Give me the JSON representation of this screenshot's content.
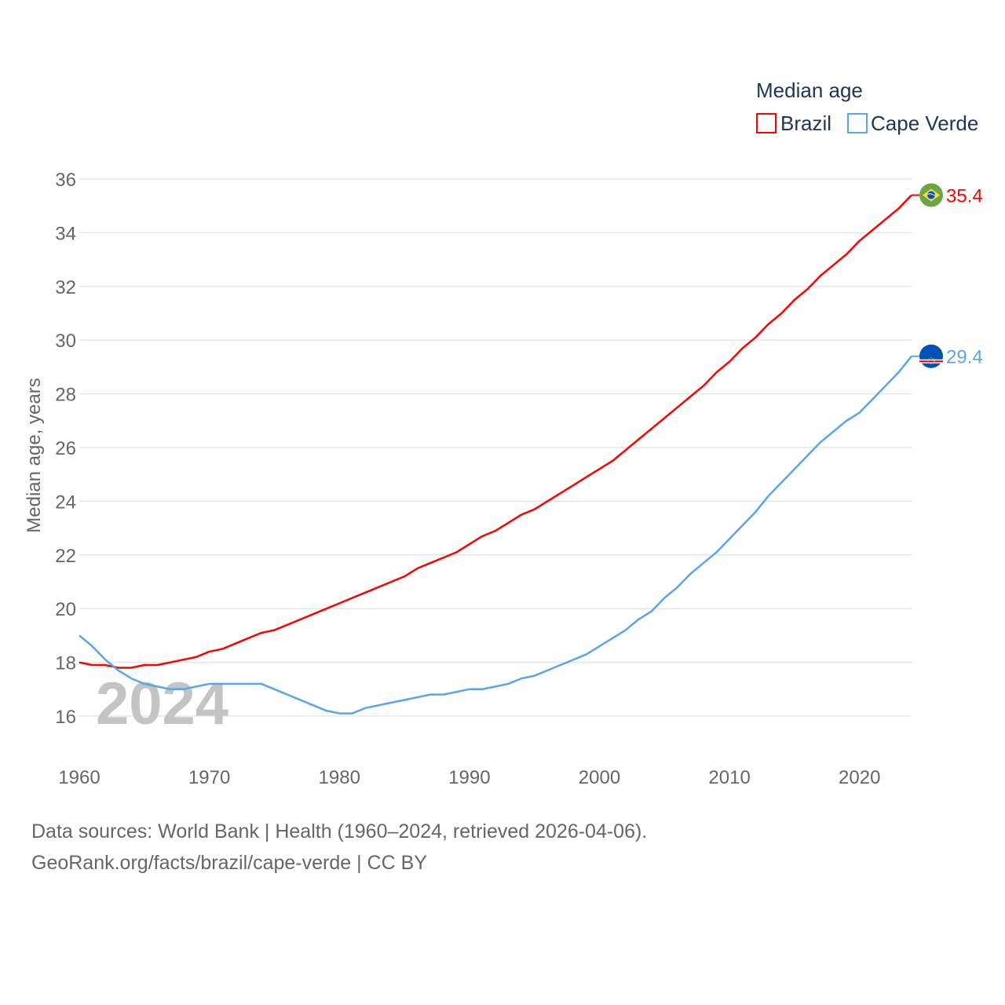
{
  "chart_data": {
    "type": "line",
    "title": "Median age",
    "xlabel": "",
    "ylabel": "Median age, years",
    "xlim": [
      1960,
      2024
    ],
    "ylim": [
      15,
      36.5
    ],
    "xticks": [
      1960,
      1970,
      1980,
      1990,
      2000,
      2010,
      2020
    ],
    "yticks": [
      16,
      18,
      20,
      22,
      24,
      26,
      28,
      30,
      32,
      34,
      36
    ],
    "grid": true,
    "legend_position": "top-right",
    "watermark_year": "2024",
    "x": [
      1960,
      1961,
      1962,
      1963,
      1964,
      1965,
      1966,
      1967,
      1968,
      1969,
      1970,
      1971,
      1972,
      1973,
      1974,
      1975,
      1976,
      1977,
      1978,
      1979,
      1980,
      1981,
      1982,
      1983,
      1984,
      1985,
      1986,
      1987,
      1988,
      1989,
      1990,
      1991,
      1992,
      1993,
      1994,
      1995,
      1996,
      1997,
      1998,
      1999,
      2000,
      2001,
      2002,
      2003,
      2004,
      2005,
      2006,
      2007,
      2008,
      2009,
      2010,
      2011,
      2012,
      2013,
      2014,
      2015,
      2016,
      2017,
      2018,
      2019,
      2020,
      2021,
      2022,
      2023,
      2024
    ],
    "series": [
      {
        "name": "Brazil",
        "color": "#ff0000",
        "end_label": "35.4",
        "flag": "brazil-flag",
        "values": [
          18.0,
          17.9,
          17.9,
          17.8,
          17.8,
          17.9,
          17.9,
          18.0,
          18.1,
          18.2,
          18.4,
          18.5,
          18.7,
          18.9,
          19.1,
          19.2,
          19.4,
          19.6,
          19.8,
          20.0,
          20.2,
          20.4,
          20.6,
          20.8,
          21.0,
          21.2,
          21.5,
          21.7,
          21.9,
          22.1,
          22.4,
          22.7,
          22.9,
          23.2,
          23.5,
          23.7,
          24.0,
          24.3,
          24.6,
          24.9,
          25.2,
          25.5,
          25.9,
          26.3,
          26.7,
          27.1,
          27.5,
          27.9,
          28.3,
          28.8,
          29.2,
          29.7,
          30.1,
          30.6,
          31.0,
          31.5,
          31.9,
          32.4,
          32.8,
          33.2,
          33.7,
          34.1,
          34.5,
          34.9,
          35.4
        ]
      },
      {
        "name": "Cape Verde",
        "color": "#5ba4ec",
        "end_label": "29.4",
        "flag": "cape-verde-flag",
        "values": [
          19.0,
          18.6,
          18.1,
          17.7,
          17.4,
          17.2,
          17.1,
          17.0,
          17.0,
          17.1,
          17.2,
          17.2,
          17.2,
          17.2,
          17.2,
          17.0,
          16.8,
          16.6,
          16.4,
          16.2,
          16.1,
          16.1,
          16.3,
          16.4,
          16.5,
          16.6,
          16.7,
          16.8,
          16.8,
          16.9,
          17.0,
          17.0,
          17.1,
          17.2,
          17.4,
          17.5,
          17.7,
          17.9,
          18.1,
          18.3,
          18.6,
          18.9,
          19.2,
          19.6,
          19.9,
          20.4,
          20.8,
          21.3,
          21.7,
          22.1,
          22.6,
          23.1,
          23.6,
          24.2,
          24.7,
          25.2,
          25.7,
          26.2,
          26.6,
          27.0,
          27.3,
          27.8,
          28.3,
          28.8,
          29.4
        ]
      }
    ]
  },
  "footer": {
    "line1": "Data sources: World Bank | Health (1960–2024, retrieved 2026-04-06).",
    "line2": "GeoRank.org/facts/brazil/cape-verde | CC BY"
  }
}
